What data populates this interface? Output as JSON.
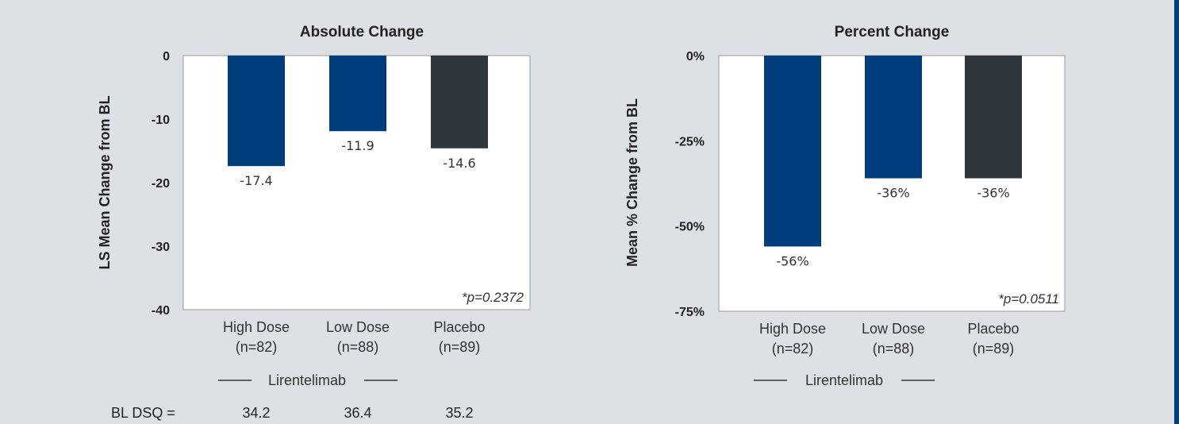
{
  "chart_data": [
    {
      "type": "bar",
      "title": "Absolute Change",
      "ylabel": "LS Mean Change from BL",
      "categories": [
        [
          "High Dose",
          "(n=82)"
        ],
        [
          "Low Dose",
          "(n=88)"
        ],
        [
          "Placebo",
          "(n=89)"
        ]
      ],
      "values": [
        -17.4,
        -11.9,
        -14.6
      ],
      "data_labels": [
        "-17.4",
        "-11.9",
        "-14.6"
      ],
      "colors": [
        "#003d7c",
        "#003d7c",
        "#2d373d"
      ],
      "ylim": [
        -40,
        0
      ],
      "yticks": [
        0,
        -10,
        -20,
        -30,
        -40
      ],
      "ytick_labels": [
        "0",
        "-10",
        "-20",
        "-30",
        "-40"
      ],
      "annotation": "*p=0.2372",
      "group_label": "Lirentelimab"
    },
    {
      "type": "bar",
      "title": "Percent Change",
      "ylabel": "Mean % Change from BL",
      "categories": [
        [
          "High Dose",
          "(n=82)"
        ],
        [
          "Low Dose",
          "(n=88)"
        ],
        [
          "Placebo",
          "(n=89)"
        ]
      ],
      "values": [
        -56,
        -36,
        -36
      ],
      "data_labels": [
        "-56%",
        "-36%",
        "-36%"
      ],
      "colors": [
        "#003d7c",
        "#003d7c",
        "#2d373d"
      ],
      "ylim": [
        -75,
        0
      ],
      "yticks": [
        0,
        -25,
        -50,
        -75
      ],
      "ytick_labels": [
        "0%",
        "-25%",
        "-50%",
        "-75%"
      ],
      "annotation": "*p=0.0511",
      "group_label": "Lirentelimab"
    }
  ],
  "baseline": {
    "label": "BL DSQ =",
    "values": [
      "34.2",
      "36.4",
      "35.2"
    ]
  }
}
